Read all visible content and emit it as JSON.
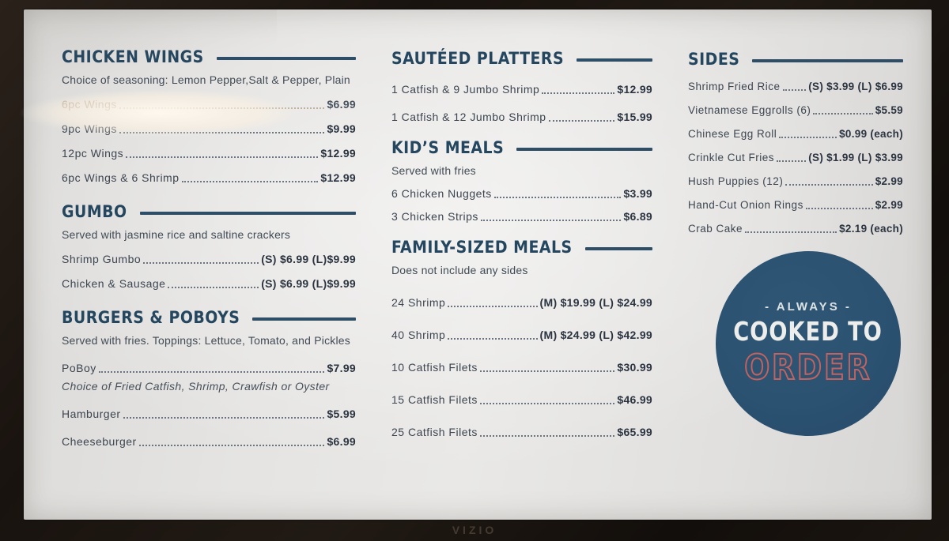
{
  "menu": {
    "columns": [
      {
        "sections": [
          {
            "title": "CHICKEN WINGS",
            "subtitle": "Choice of seasoning: Lemon Pepper,Salt & Pepper, Plain",
            "items": [
              {
                "name": "6pc Wings",
                "price": "$6.99",
                "faded": true
              },
              {
                "name": "9pc Wings",
                "price": "$9.99"
              },
              {
                "name": "12pc Wings",
                "price": "$12.99"
              },
              {
                "name": "6pc Wings & 6 Shrimp",
                "price": "$12.99"
              }
            ]
          },
          {
            "title": "GUMBO",
            "subtitle": "Served with jasmine rice and saltine crackers",
            "items": [
              {
                "name": "Shrimp Gumbo",
                "price": "(S) $6.99 (L)$9.99"
              },
              {
                "name": "Chicken & Sausage",
                "price": "(S) $6.99 (L)$9.99"
              }
            ]
          },
          {
            "title": "BURGERS & POBOYS",
            "subtitle": "Served with fries. Toppings: Lettuce, Tomato, and Pickles",
            "items": [
              {
                "name": "PoBoy",
                "price": "$7.99",
                "note": "Choice of Fried Catfish, Shrimp, Crawfish or Oyster"
              },
              {
                "name": "Hamburger",
                "price": "$5.99"
              },
              {
                "name": "Cheeseburger",
                "price": "$6.99"
              }
            ]
          }
        ]
      },
      {
        "sections": [
          {
            "title": "SAUTÉED PLATTERS",
            "subtitle": "",
            "items": [
              {
                "name": "1 Catfish & 9 Jumbo Shrimp",
                "price": "$12.99"
              },
              {
                "name": "1 Catfish & 12 Jumbo Shrimp",
                "price": "$15.99"
              }
            ]
          },
          {
            "title": "KID’S MEALS",
            "subtitle": "Served with fries",
            "items": [
              {
                "name": "6 Chicken Nuggets",
                "price": "$3.99"
              },
              {
                "name": "3 Chicken Strips",
                "price": "$6.89"
              }
            ]
          },
          {
            "title": "FAMILY-SIZED MEALS",
            "subtitle": "Does not include any sides",
            "items": [
              {
                "name": "24 Shrimp",
                "price": "(M) $19.99 (L) $24.99"
              },
              {
                "name": "40 Shrimp",
                "price": "(M) $24.99 (L) $42.99"
              },
              {
                "name": "10 Catfish Filets",
                "price": "$30.99"
              },
              {
                "name": "15 Catfish Filets",
                "price": "$46.99"
              },
              {
                "name": "25 Catfish Filets",
                "price": "$65.99"
              }
            ]
          }
        ]
      },
      {
        "sections": [
          {
            "title": "SIDES",
            "subtitle": "",
            "items": [
              {
                "name": "Shrimp Fried Rice",
                "price": "(S) $3.99 (L) $6.99"
              },
              {
                "name": "Vietnamese Eggrolls (6)",
                "price": "$5.59"
              },
              {
                "name": "Chinese Egg Roll",
                "price": "$0.99 (each)"
              },
              {
                "name": "Crinkle Cut Fries",
                "price": "(S) $1.99 (L) $3.99"
              },
              {
                "name": "Hush Puppies (12)",
                "price": "$2.99"
              },
              {
                "name": "Hand-Cut Onion Rings",
                "price": "$2.99"
              },
              {
                "name": "Crab Cake",
                "price": "$2.19 (each)"
              }
            ]
          }
        ]
      }
    ]
  },
  "badge": {
    "line1": "- ALWAYS -",
    "line2": "COOKED TO",
    "line3": "ORDER"
  },
  "tv": {
    "brand": "VIZIO"
  },
  "colors": {
    "heading": "#24465f",
    "item_text": "#3c4550",
    "price_text": "#2b3440",
    "badge_background": "#2b5271",
    "badge_outline_text": "#c4625f",
    "faded_item_text": "#b6a28c",
    "screen_background": "#e5e4e2",
    "bezel": "#1b1510"
  }
}
